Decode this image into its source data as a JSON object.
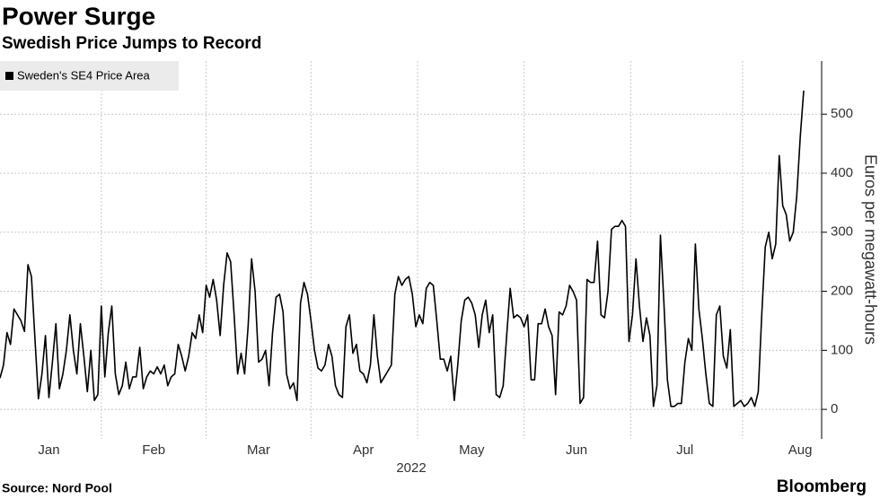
{
  "chart_data": {
    "type": "line",
    "title": "Power Surge",
    "subtitle": "Swedish Price Jumps to Record",
    "x_label": "2022",
    "y_label": "Euros per megawatt-hours",
    "source": "Source: Nord Pool",
    "brand": "Bloomberg",
    "legend": "top-left",
    "grid": true,
    "categories": [
      null,
      null,
      null,
      null,
      null,
      null,
      null,
      null,
      null,
      null,
      null,
      null,
      null,
      null,
      "Jan",
      null,
      null,
      null,
      null,
      null,
      null,
      null,
      null,
      null,
      null,
      null,
      null,
      null,
      null,
      null,
      null,
      null,
      null,
      null,
      null,
      null,
      null,
      null,
      null,
      null,
      null,
      null,
      null,
      null,
      "Feb",
      null,
      null,
      null,
      null,
      null,
      null,
      null,
      null,
      null,
      null,
      null,
      null,
      null,
      null,
      null,
      null,
      null,
      null,
      null,
      null,
      null,
      null,
      null,
      null,
      null,
      null,
      null,
      null,
      null,
      "Mar",
      null,
      null,
      null,
      null,
      null,
      null,
      null,
      null,
      null,
      null,
      null,
      null,
      null,
      null,
      null,
      null,
      null,
      null,
      null,
      null,
      null,
      null,
      null,
      null,
      null,
      null,
      null,
      null,
      null,
      "Apr",
      null,
      null,
      null,
      null,
      null,
      null,
      null,
      null,
      null,
      null,
      null,
      null,
      null,
      null,
      null,
      null,
      null,
      null,
      null,
      null,
      null,
      null,
      null,
      null,
      null,
      null,
      null,
      null,
      null,
      null,
      "May",
      null,
      null,
      null,
      null,
      null,
      null,
      null,
      null,
      null,
      null,
      null,
      null,
      null,
      null,
      null,
      null,
      null,
      null,
      null,
      null,
      null,
      null,
      null,
      null,
      null,
      null,
      null,
      null,
      null,
      "Jun",
      null,
      null,
      null,
      null,
      null,
      null,
      null,
      null,
      null,
      null,
      null,
      null,
      null,
      null,
      null,
      null,
      null,
      null,
      null,
      null,
      null,
      null,
      null,
      null,
      null,
      null,
      null,
      null,
      null,
      null,
      "Jul",
      null,
      null,
      null,
      null,
      null,
      null,
      null,
      null,
      null,
      null,
      null,
      null,
      null,
      null,
      null,
      null,
      null,
      null,
      null,
      null,
      null,
      null,
      null,
      null,
      null,
      null,
      null,
      null,
      null,
      null,
      null,
      null,
      "Aug",
      null
    ],
    "series": [
      {
        "name": "Sweden's SE4 Price Area",
        "color": "#000000",
        "values": [
          53,
          75,
          130,
          110,
          170,
          160,
          150,
          132,
          245,
          225,
          120,
          18,
          60,
          125,
          20,
          80,
          145,
          35,
          60,
          100,
          160,
          100,
          60,
          145,
          90,
          30,
          100,
          15,
          25,
          175,
          55,
          130,
          175,
          60,
          25,
          40,
          80,
          35,
          55,
          55,
          105,
          35,
          55,
          65,
          60,
          72,
          60,
          75,
          40,
          55,
          60,
          110,
          90,
          65,
          90,
          130,
          120,
          160,
          130,
          210,
          190,
          220,
          185,
          125,
          210,
          265,
          250,
          160,
          60,
          95,
          60,
          140,
          255,
          200,
          80,
          85,
          100,
          40,
          130,
          190,
          195,
          165,
          60,
          35,
          45,
          15,
          180,
          215,
          195,
          150,
          100,
          70,
          65,
          75,
          110,
          90,
          40,
          25,
          20,
          140,
          160,
          95,
          110,
          65,
          60,
          45,
          75,
          160,
          90,
          45,
          55,
          65,
          75,
          195,
          225,
          210,
          220,
          225,
          195,
          140,
          160,
          145,
          205,
          215,
          210,
          150,
          85,
          85,
          65,
          90,
          15,
          75,
          150,
          185,
          190,
          180,
          160,
          105,
          160,
          185,
          130,
          160,
          25,
          20,
          40,
          125,
          205,
          155,
          160,
          155,
          140,
          160,
          50,
          50,
          145,
          145,
          170,
          140,
          125,
          25,
          165,
          160,
          175,
          210,
          200,
          185,
          10,
          20,
          220,
          215,
          215,
          285,
          160,
          155,
          200,
          305,
          310,
          310,
          320,
          310,
          115,
          160,
          255,
          175,
          115,
          155,
          125,
          5,
          40,
          295,
          180,
          50,
          5,
          5,
          10,
          10,
          80,
          120,
          100,
          280,
          170,
          120,
          60,
          10,
          5,
          160,
          175,
          90,
          70,
          135,
          5,
          10,
          15,
          5,
          10,
          20,
          5,
          30,
          160,
          275,
          300,
          255,
          280,
          430,
          345,
          330,
          285,
          300,
          360,
          460,
          540
        ]
      }
    ],
    "ylim": [
      -50,
      590
    ],
    "yticks": [
      0,
      100,
      200,
      300,
      400,
      500
    ]
  }
}
